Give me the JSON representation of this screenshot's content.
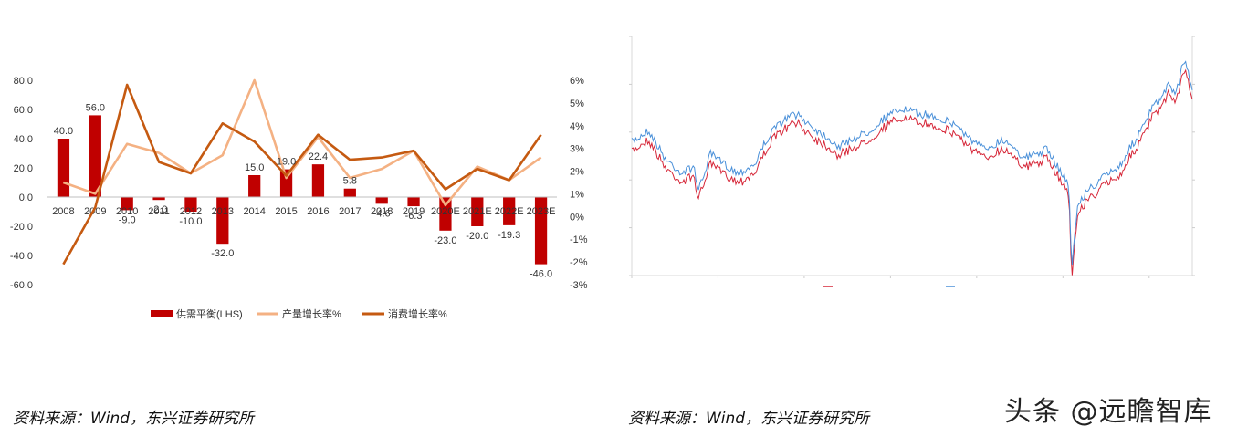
{
  "chart_data": [
    {
      "type": "bar",
      "title": "",
      "categories": [
        "2008",
        "2009",
        "2010",
        "2011",
        "2012",
        "2013",
        "2014",
        "2015",
        "2016",
        "2017",
        "2018",
        "2019",
        "2020E",
        "2021E",
        "2022E",
        "2023E"
      ],
      "series": [
        {
          "name": "供需平衡(LHS)",
          "type": "bar",
          "axis": "left",
          "color": "#c00000",
          "values": [
            40.0,
            56.0,
            -9.0,
            -2.0,
            -10.0,
            -32.0,
            15.0,
            19.0,
            22.4,
            5.8,
            -4.6,
            -6.3,
            -23.0,
            -20.0,
            -19.3,
            -46.0
          ],
          "labels": [
            "40.0",
            "56.0",
            "-9.0",
            "-2.0",
            "-10.0",
            "-32.0",
            "15.0",
            "19.0",
            "22.4",
            "5.8",
            "-4.6",
            "-6.3",
            "-23.0",
            "-20.0",
            "-19.3",
            "-46.0"
          ]
        },
        {
          "name": "产量增长率%",
          "type": "line",
          "axis": "right",
          "color": "#f4b183",
          "values": [
            1.5,
            1.0,
            3.2,
            2.8,
            1.9,
            2.7,
            6.0,
            1.7,
            3.5,
            1.7,
            2.1,
            2.9,
            0.5,
            2.2,
            1.6,
            2.6
          ]
        },
        {
          "name": "消费增长率%",
          "type": "line",
          "axis": "right",
          "color": "#c55a11",
          "values": [
            -2.1,
            0.4,
            5.8,
            2.4,
            1.9,
            4.1,
            3.3,
            1.8,
            3.6,
            2.5,
            2.6,
            2.9,
            1.2,
            2.1,
            1.6,
            3.6
          ]
        }
      ],
      "left_axis": {
        "min": -60,
        "max": 80,
        "ticks": [
          "80.0",
          "60.0",
          "40.0",
          "20.0",
          "0.0",
          "-20.0",
          "-40.0",
          "-60.0"
        ]
      },
      "right_axis": {
        "min": -3,
        "max": 6,
        "ticks": [
          "6%",
          "5%",
          "4%",
          "3%",
          "2%",
          "1%",
          "0%",
          "-1%",
          "-2%",
          "-3%"
        ]
      },
      "grid": false,
      "legend": "bottom"
    },
    {
      "type": "line",
      "title": "",
      "series": [
        {
          "name": "",
          "color": "#d62739"
        },
        {
          "name": "",
          "color": "#4a90d9"
        }
      ],
      "grid": false,
      "legend": "bottom"
    }
  ],
  "source_left": "资料来源：Wind，东兴证券研究所",
  "source_right": "资料来源：Wind，东兴证券研究所",
  "watermark": "头条 @远瞻智库"
}
